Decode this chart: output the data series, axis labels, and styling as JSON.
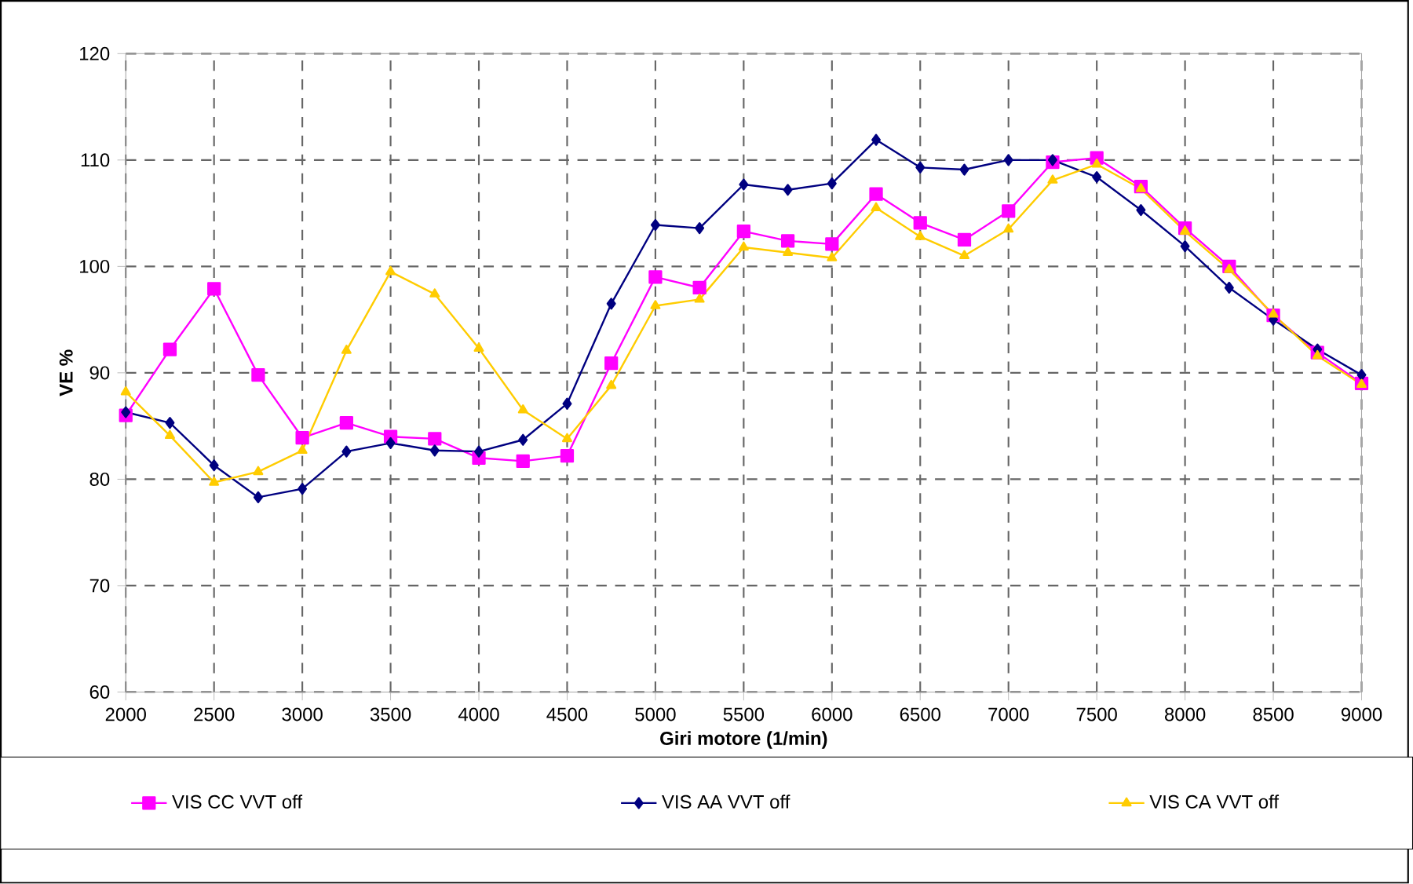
{
  "chart_data": {
    "type": "line",
    "xlabel": "Giri motore (1/min)",
    "ylabel": "VE %",
    "x": [
      2000,
      2250,
      2500,
      2750,
      3000,
      3250,
      3500,
      3750,
      4000,
      4250,
      4500,
      4750,
      5000,
      5250,
      5500,
      5750,
      6000,
      6250,
      6500,
      6750,
      7000,
      7250,
      7500,
      7750,
      8000,
      8250,
      8500,
      8750,
      9000
    ],
    "series": [
      {
        "name": "VIS CC VVT off",
        "color": "#ff00ff",
        "marker": "square",
        "values": [
          86.0,
          92.2,
          97.9,
          89.8,
          83.9,
          85.3,
          84.0,
          83.8,
          82.0,
          81.7,
          82.2,
          90.9,
          99.0,
          98.0,
          103.3,
          102.4,
          102.1,
          106.8,
          104.1,
          102.5,
          105.2,
          109.8,
          110.2,
          107.5,
          103.6,
          100.0,
          95.4,
          91.9,
          89.0
        ]
      },
      {
        "name": "VIS AA VVT off",
        "color": "#000080",
        "marker": "diamond",
        "values": [
          86.3,
          85.3,
          81.3,
          78.3,
          79.1,
          82.6,
          83.4,
          82.7,
          82.6,
          83.7,
          87.1,
          96.5,
          103.9,
          103.6,
          107.7,
          107.2,
          107.8,
          111.9,
          109.3,
          109.1,
          110.0,
          110.0,
          108.4,
          105.3,
          101.9,
          98.0,
          95.0,
          92.2,
          89.8
        ]
      },
      {
        "name": "VIS CA VVT off",
        "color": "#ffcc00",
        "marker": "triangle",
        "values": [
          88.2,
          84.1,
          79.7,
          80.7,
          82.7,
          92.1,
          99.5,
          97.4,
          92.3,
          86.5,
          83.8,
          88.8,
          96.3,
          96.9,
          101.8,
          101.3,
          100.8,
          105.5,
          102.8,
          101.0,
          103.5,
          108.1,
          109.6,
          107.3,
          103.3,
          99.7,
          95.5,
          91.6,
          88.9
        ]
      }
    ],
    "xlim": [
      2000,
      9000
    ],
    "xticks": [
      2000,
      2500,
      3000,
      3500,
      4000,
      4500,
      5000,
      5500,
      6000,
      6500,
      7000,
      7500,
      8000,
      8500,
      9000
    ],
    "ylim": [
      60,
      120
    ],
    "yticks": [
      60,
      70,
      80,
      90,
      100,
      110,
      120
    ],
    "grid": true,
    "legend": "bottom",
    "line_style": "solid"
  }
}
